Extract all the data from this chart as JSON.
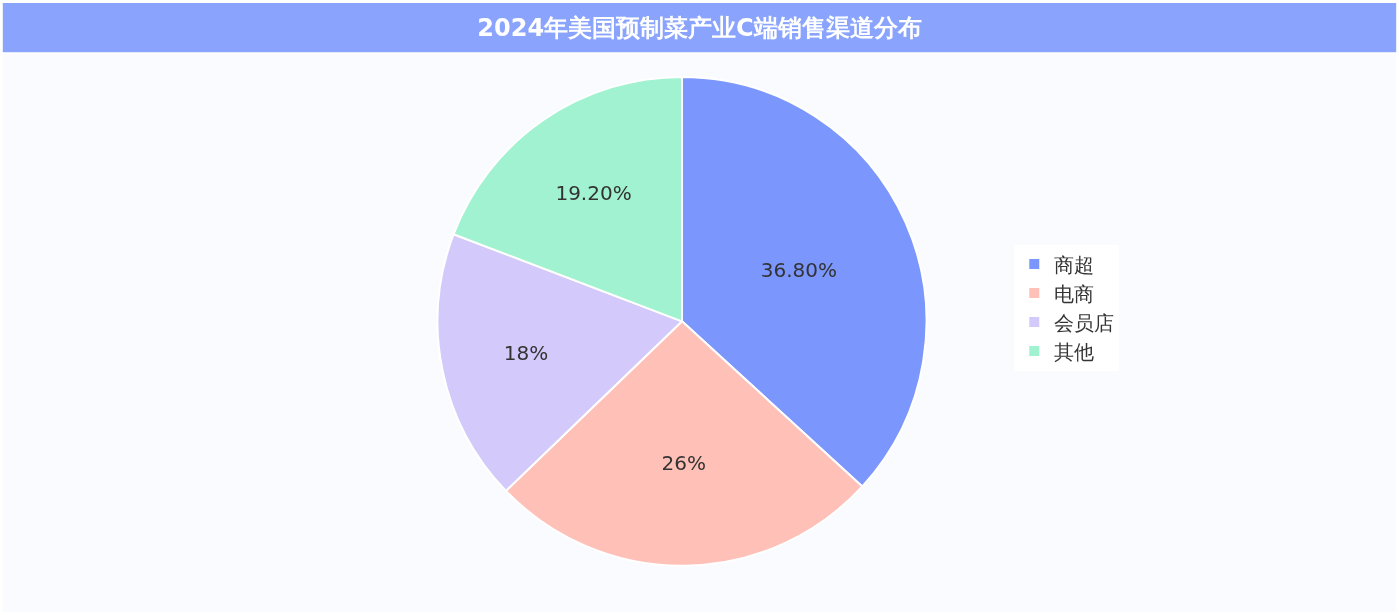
{
  "chart_data": {
    "type": "pie",
    "title": "2024年美国预制菜产业C端销售渠道分布",
    "categories": [
      "商超",
      "电商",
      "会员店",
      "其他"
    ],
    "values": [
      36.8,
      26,
      18,
      19.2
    ],
    "value_labels": [
      "36.80%",
      "26%",
      "18%",
      "19.20%"
    ],
    "colors": [
      "#7b96fc",
      "#ffc0b8",
      "#d3cafb",
      "#a0f2d0"
    ],
    "legend": "right"
  }
}
